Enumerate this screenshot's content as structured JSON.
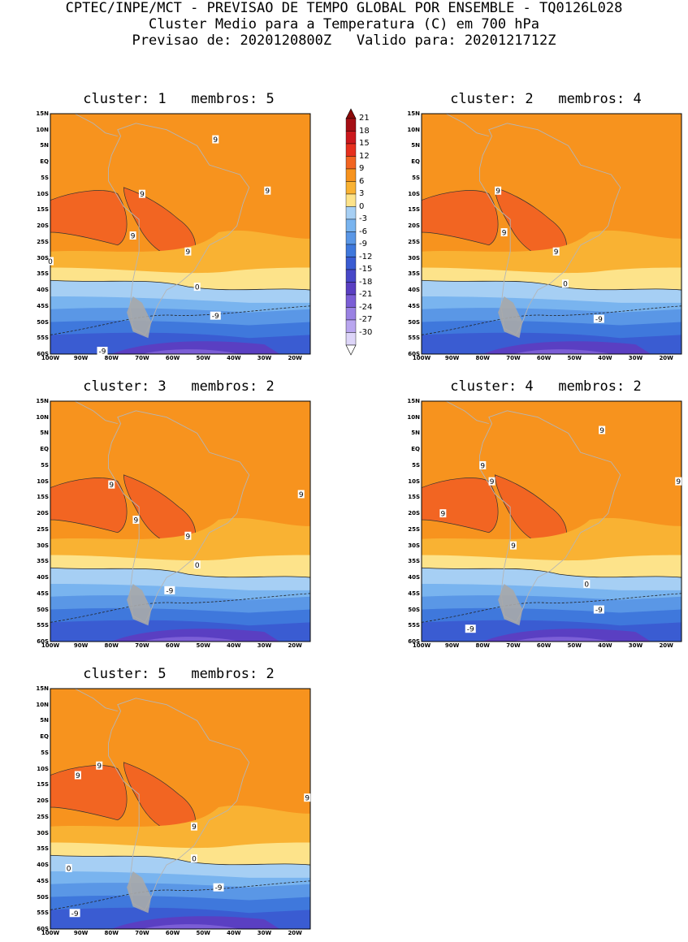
{
  "header": {
    "line1": "CPTEC/INPE/MCT - PREVISAO DE TEMPO GLOBAL POR ENSEMBLE - TQ0126L028",
    "line2": "Cluster Medio para a Temperatura (C) em 700 hPa",
    "line3": "Previsao de: 2020120800Z   Valido para: 2020121712Z"
  },
  "lat_labels": [
    "15N",
    "10N",
    "5N",
    "EQ",
    "5S",
    "10S",
    "15S",
    "20S",
    "25S",
    "30S",
    "35S",
    "40S",
    "45S",
    "50S",
    "55S",
    "60S"
  ],
  "lon_labels": [
    "100W",
    "90W",
    "80W",
    "70W",
    "60W",
    "50W",
    "40W",
    "30W",
    "20W"
  ],
  "colorbar": {
    "labels": [
      "21",
      "18",
      "15",
      "12",
      "9",
      "6",
      "3",
      "0",
      "-3",
      "-6",
      "-9",
      "-12",
      "-15",
      "-18",
      "-21",
      "-24",
      "-27",
      "-30"
    ],
    "colors": [
      "#a50f15",
      "#cb181d",
      "#e6301e",
      "#f26522",
      "#f7931e",
      "#f9b233",
      "#fde38a",
      "#a6cff4",
      "#79b4ef",
      "#5a97e6",
      "#3f78dc",
      "#3a5cd2",
      "#4848c8",
      "#5a3fc2",
      "#7b5ed6",
      "#9a82e3",
      "#b9a6ef",
      "#ddd5f8"
    ],
    "arrow_top_color": "#8b0a0a",
    "arrow_bottom_color": "#ffffff"
  },
  "clusters": [
    {
      "title": "cluster: 1   membros: 5",
      "labels": [
        "9",
        "9",
        "9",
        "9",
        "9",
        "0",
        "0",
        "-9",
        "-9"
      ]
    },
    {
      "title": "cluster: 2   membros: 4",
      "labels": [
        "9",
        "9",
        "9",
        "0",
        "-9"
      ]
    },
    {
      "title": "cluster: 3   membros: 2",
      "labels": [
        "9",
        "9",
        "9",
        "9",
        "0",
        "-9"
      ]
    },
    {
      "title": "cluster: 4   membros: 2",
      "labels": [
        "9",
        "9",
        "9",
        "9",
        "9",
        "9",
        "0",
        "-9",
        "-9"
      ]
    },
    {
      "title": "cluster: 5   membros: 2",
      "labels": [
        "9",
        "9",
        "9",
        "9",
        "0",
        "0",
        "-9",
        "-9"
      ]
    }
  ]
}
